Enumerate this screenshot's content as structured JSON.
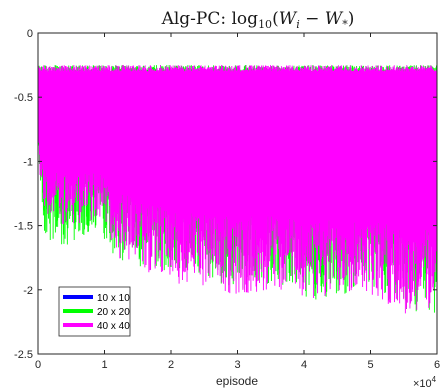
{
  "chart_data": {
    "type": "line",
    "title": "Alg-PC: log10(Wi − W*)",
    "title_parts": {
      "prefix": "Alg-PC: ",
      "func": "log",
      "func_sub": "10",
      "open": "(",
      "w1": "W",
      "w1_sub": "i",
      "minus": " − ",
      "w2": "W",
      "w2_sub": "*",
      "close": ")"
    },
    "xlabel": "episode",
    "ylabel": "",
    "x_exponent_label": "×10",
    "x_exponent_power": "4",
    "xlim": [
      0,
      6
    ],
    "ylim": [
      -2.5,
      0
    ],
    "x_ticks": [
      0,
      1,
      2,
      3,
      4,
      5,
      6
    ],
    "x_tick_labels": [
      "0",
      "1",
      "2",
      "3",
      "4",
      "5",
      "6"
    ],
    "y_ticks": [
      0,
      -0.5,
      -1,
      -1.5,
      -2,
      -2.5
    ],
    "y_tick_labels": [
      "0",
      "-0.5",
      "-1",
      "-1.5",
      "-2",
      "-2.5"
    ],
    "grid": false,
    "legend_position": "bottom-left",
    "series": [
      {
        "name": "10 x 10",
        "color": "#0000ff",
        "envelope": {
          "x": [
            0,
            0.1,
            0.3,
            0.6,
            1.0,
            1.5,
            2.0,
            2.5,
            3.0,
            3.5,
            4.0,
            4.5,
            5.0,
            5.5,
            6.0
          ],
          "upper": [
            -0.3,
            -0.3,
            -0.3,
            -0.3,
            -0.32,
            -0.33,
            -0.35,
            -0.38,
            -0.45,
            -0.4,
            -0.45,
            -0.45,
            -0.5,
            -0.55,
            -0.6
          ],
          "lower": [
            -0.85,
            -0.95,
            -1.0,
            -1.0,
            -1.0,
            -1.0,
            -1.0,
            -1.0,
            -1.0,
            -1.0,
            -1.0,
            -1.0,
            -1.0,
            -1.0,
            -1.0
          ]
        },
        "baseline": -0.98
      },
      {
        "name": "20 x 20",
        "color": "#00ff00",
        "envelope": {
          "x": [
            0,
            0.1,
            0.3,
            0.6,
            0.9,
            1.2,
            1.6,
            2.0,
            2.5,
            3.0,
            3.5,
            4.0,
            4.3,
            4.6,
            5.0,
            5.5,
            6.0
          ],
          "upper": [
            -0.3,
            -0.3,
            -0.3,
            -0.3,
            -0.3,
            -0.3,
            -0.3,
            -0.3,
            -0.3,
            -0.3,
            -0.3,
            -0.3,
            -0.3,
            -0.3,
            -0.3,
            -0.3,
            -0.3
          ],
          "lower": [
            -1.0,
            -1.55,
            -1.7,
            -1.6,
            -1.55,
            -1.8,
            -1.85,
            -1.85,
            -1.9,
            -2.0,
            -1.95,
            -2.05,
            -2.1,
            -2.05,
            -2.0,
            -2.15,
            -2.2
          ]
        }
      },
      {
        "name": "40 x 40",
        "color": "#ff00ff",
        "envelope": {
          "x": [
            0,
            0.1,
            0.3,
            0.6,
            0.9,
            1.2,
            1.6,
            2.0,
            2.5,
            3.0,
            3.5,
            4.0,
            4.3,
            4.6,
            5.0,
            5.5,
            6.0
          ],
          "upper": [
            -0.3,
            -0.3,
            -0.3,
            -0.3,
            -0.3,
            -0.3,
            -0.3,
            -0.3,
            -0.3,
            -0.3,
            -0.3,
            -0.3,
            -0.3,
            -0.3,
            -0.3,
            -0.3,
            -0.3
          ],
          "lower": [
            -1.0,
            -1.4,
            -1.5,
            -1.5,
            -1.45,
            -1.75,
            -1.85,
            -1.95,
            -2.0,
            -2.05,
            -2.0,
            -2.05,
            -2.1,
            -2.0,
            -2.05,
            -2.2,
            -2.15
          ]
        }
      }
    ]
  }
}
